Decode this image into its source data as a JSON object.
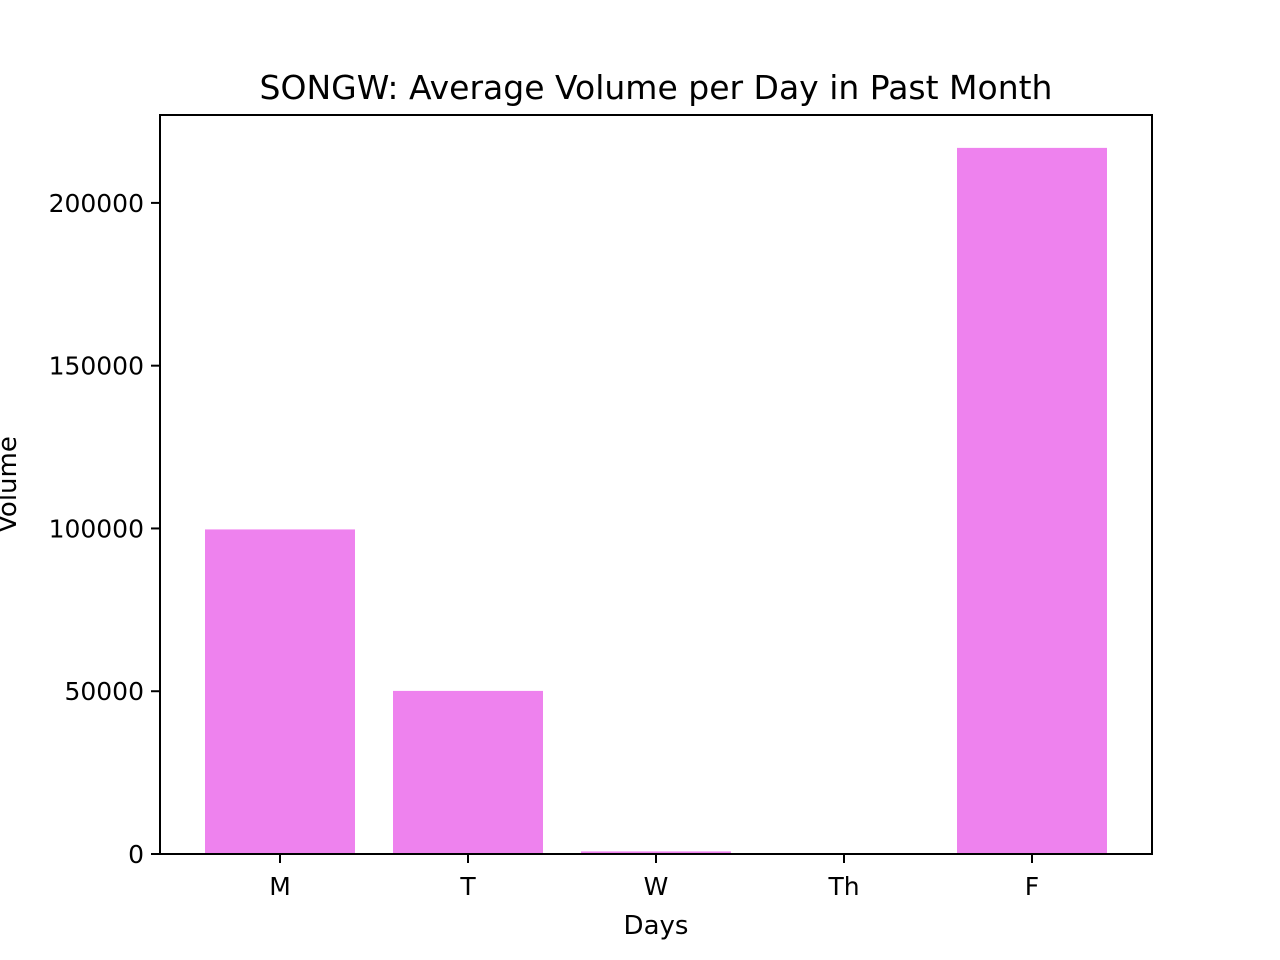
{
  "chart_data": {
    "type": "bar",
    "title": "SONGW: Average Volume per Day in Past Month",
    "xlabel": "Days",
    "ylabel": "Volume",
    "categories": [
      "M",
      "T",
      "W",
      "Th",
      "F"
    ],
    "values": [
      99700,
      50100,
      800,
      0,
      216900
    ],
    "ylim": [
      0,
      227000
    ],
    "yticks": [
      0,
      50000,
      100000,
      150000,
      200000
    ],
    "ytick_labels": [
      "0",
      "50000",
      "100000",
      "150000",
      "200000"
    ],
    "bar_color": "#ee82ee",
    "grid": false,
    "legend": "none"
  }
}
